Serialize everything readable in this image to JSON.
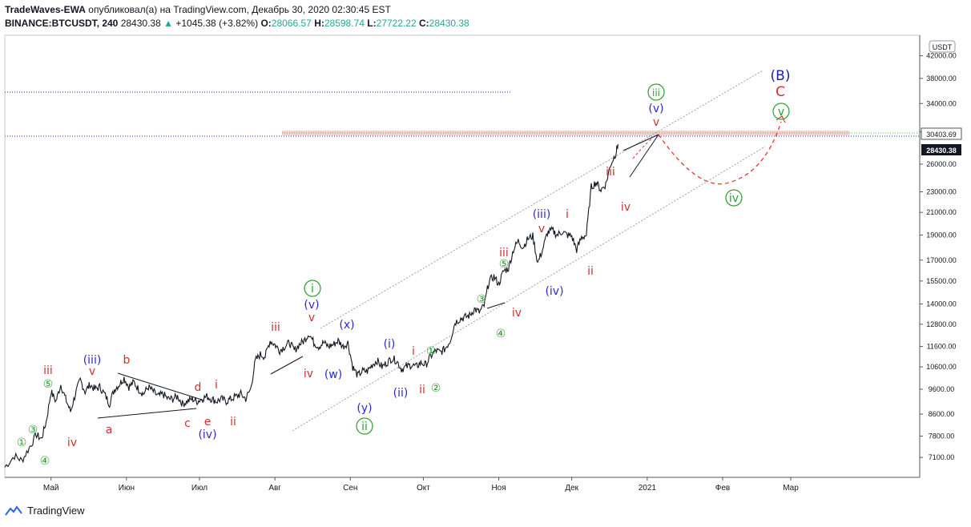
{
  "header": {
    "author": "TradeWaves-EWA",
    "published_text": "опубликовал(а) на TradingView.com, Декабрь 30, 2020 02:30:45 EST",
    "symbol": "BINANCE:BTCUSDT, 240",
    "last": "28430.38",
    "change_arrow": "▲",
    "change": "+1045.38 (+3.82%)",
    "o_label": "O:",
    "o_value": "28066.57",
    "h_label": "H:",
    "h_value": "28598.74",
    "l_label": "L:",
    "l_value": "27722.22",
    "c_label": "C:",
    "c_value": "28430.38"
  },
  "footer": {
    "brand": "TradingView"
  },
  "colors": {
    "red": "#d32f2f",
    "blue": "#2a2ad8",
    "green": "#2e9d2e",
    "navy": "#1c1cb5"
  },
  "chart_data": {
    "type": "line",
    "price_scale": "log",
    "currency_label": "USDT",
    "y_ticks": [
      7100,
      7800,
      8600,
      9600,
      10600,
      11600,
      12800,
      14000,
      15500,
      17000,
      19000,
      21000,
      23000,
      26000,
      30000,
      34000,
      38000,
      42000
    ],
    "y_tick_labels": [
      "7100.00",
      "7800.00",
      "8600.00",
      "9600.00",
      "10600.00",
      "11600.00",
      "12800.00",
      "14000.00",
      "15500.00",
      "17000.00",
      "19000.00",
      "21000.00",
      "23000.00",
      "26000.00",
      "30000.00",
      "34000.00",
      "38000.00",
      "42000.00"
    ],
    "ylim": [
      6500,
      46000
    ],
    "x_axis_labels": [
      {
        "label": "Май",
        "day": 0
      },
      {
        "label": "Июн",
        "day": 31
      },
      {
        "label": "Июл",
        "day": 61
      },
      {
        "label": "Авг",
        "day": 92
      },
      {
        "label": "Сен",
        "day": 123
      },
      {
        "label": "Окт",
        "day": 153
      },
      {
        "label": "Ноя",
        "day": 184
      },
      {
        "label": "Дек",
        "day": 214
      },
      {
        "label": "2021",
        "day": 245
      },
      {
        "label": "Фев",
        "day": 276
      },
      {
        "label": "Мар",
        "day": 304
      }
    ],
    "xlim": [
      -19,
      357
    ],
    "price_line": {
      "label": "28430.38",
      "value": 28430.38
    },
    "resistance_level": {
      "label": "30403.69",
      "value": 30403.69
    },
    "price_series": [
      [
        -19,
        6800
      ],
      [
        -15,
        7150
      ],
      [
        -12,
        7000
      ],
      [
        -9,
        7400
      ],
      [
        -6,
        7850
      ],
      [
        -4,
        7700
      ],
      [
        -2,
        8300
      ],
      [
        0,
        9500
      ],
      [
        2,
        9100
      ],
      [
        4,
        9800
      ],
      [
        6,
        9200
      ],
      [
        8,
        8700
      ],
      [
        10,
        9400
      ],
      [
        12,
        10000
      ],
      [
        14,
        9500
      ],
      [
        16,
        9800
      ],
      [
        18,
        9600
      ],
      [
        20,
        9700
      ],
      [
        22,
        9400
      ],
      [
        24,
        9000
      ],
      [
        26,
        9600
      ],
      [
        28,
        9800
      ],
      [
        30,
        10100
      ],
      [
        32,
        9700
      ],
      [
        34,
        9900
      ],
      [
        36,
        9600
      ],
      [
        38,
        9400
      ],
      [
        40,
        9700
      ],
      [
        42,
        9500
      ],
      [
        44,
        9300
      ],
      [
        46,
        9400
      ],
      [
        48,
        9200
      ],
      [
        50,
        9200
      ],
      [
        52,
        9300
      ],
      [
        54,
        9000
      ],
      [
        56,
        9100
      ],
      [
        58,
        9200
      ],
      [
        60,
        9100
      ],
      [
        62,
        9200
      ],
      [
        64,
        9300
      ],
      [
        66,
        9200
      ],
      [
        68,
        9100
      ],
      [
        70,
        9200
      ],
      [
        72,
        9100
      ],
      [
        74,
        9200
      ],
      [
        76,
        9300
      ],
      [
        78,
        9400
      ],
      [
        80,
        9200
      ],
      [
        82,
        9600
      ],
      [
        84,
        10900
      ],
      [
        86,
        11200
      ],
      [
        88,
        11100
      ],
      [
        90,
        11900
      ],
      [
        92,
        11700
      ],
      [
        94,
        11400
      ],
      [
        96,
        11600
      ],
      [
        98,
        11800
      ],
      [
        100,
        11400
      ],
      [
        102,
        11700
      ],
      [
        104,
        11900
      ],
      [
        106,
        12300
      ],
      [
        108,
        11800
      ],
      [
        110,
        11600
      ],
      [
        112,
        11800
      ],
      [
        114,
        11600
      ],
      [
        116,
        11700
      ],
      [
        118,
        11900
      ],
      [
        120,
        11600
      ],
      [
        122,
        11800
      ],
      [
        124,
        10600
      ],
      [
        126,
        10200
      ],
      [
        128,
        10400
      ],
      [
        130,
        10400
      ],
      [
        132,
        10700
      ],
      [
        134,
        10900
      ],
      [
        136,
        10600
      ],
      [
        138,
        10800
      ],
      [
        140,
        11000
      ],
      [
        142,
        10900
      ],
      [
        144,
        10500
      ],
      [
        146,
        10600
      ],
      [
        148,
        10700
      ],
      [
        150,
        10600
      ],
      [
        152,
        10800
      ],
      [
        154,
        10700
      ],
      [
        156,
        11100
      ],
      [
        158,
        11400
      ],
      [
        160,
        11300
      ],
      [
        162,
        11500
      ],
      [
        164,
        11900
      ],
      [
        166,
        12900
      ],
      [
        168,
        13100
      ],
      [
        170,
        13200
      ],
      [
        172,
        13300
      ],
      [
        174,
        13700
      ],
      [
        176,
        13500
      ],
      [
        178,
        13900
      ],
      [
        180,
        15500
      ],
      [
        182,
        15800
      ],
      [
        184,
        15300
      ],
      [
        186,
        16200
      ],
      [
        188,
        16400
      ],
      [
        190,
        17800
      ],
      [
        192,
        18500
      ],
      [
        194,
        18000
      ],
      [
        196,
        18700
      ],
      [
        198,
        18900
      ],
      [
        200,
        16800
      ],
      [
        202,
        17800
      ],
      [
        204,
        19200
      ],
      [
        206,
        19400
      ],
      [
        208,
        19000
      ],
      [
        210,
        19300
      ],
      [
        212,
        19000
      ],
      [
        214,
        18900
      ],
      [
        216,
        17800
      ],
      [
        218,
        18800
      ],
      [
        220,
        19000
      ],
      [
        222,
        23500
      ],
      [
        224,
        24000
      ],
      [
        226,
        23200
      ],
      [
        228,
        23800
      ],
      [
        230,
        26000
      ],
      [
        232,
        27200
      ],
      [
        233,
        28400
      ]
    ]
  },
  "labels": {
    "w1g": "①",
    "w3g": "③",
    "w4g": "④",
    "w5g": "⑤",
    "iii_r": "iii",
    "iv_r": "iv",
    "iii_b": "(iii)",
    "v_r": "v",
    "b_r": "b",
    "a_r": "a",
    "c_r": "c",
    "d_r": "d",
    "e_r": "e",
    "i_r": "i",
    "ii_r": "ii",
    "iv_b": "(iv)",
    "i_g": "i",
    "v_b": "(v)",
    "x_b": "(x)",
    "w_b": "(w)",
    "y_b": "(y)",
    "ii_g": "ii",
    "i_b": "(i)",
    "ii_b": "(ii)",
    "i_r2": "i",
    "ii_r2": "ii",
    "w1g2": "①",
    "w2g2": "②",
    "w3g2": "③",
    "w4g2": "④",
    "w5g2": "⑤",
    "iii_r2": "iii",
    "iv_r2": "iv",
    "iv_b2": "(iv)",
    "iii_b2": "(iii)",
    "v_r2": "v",
    "i_r3": "i",
    "ii_r3": "ii",
    "iii_r3": "iii",
    "iv_r3": "iv",
    "v_r3": "v",
    "v_b2": "(v)",
    "iii_g": "iii",
    "B_b": "(B)",
    "C_r": "C",
    "v_g": "v",
    "iv_g": "iv"
  }
}
